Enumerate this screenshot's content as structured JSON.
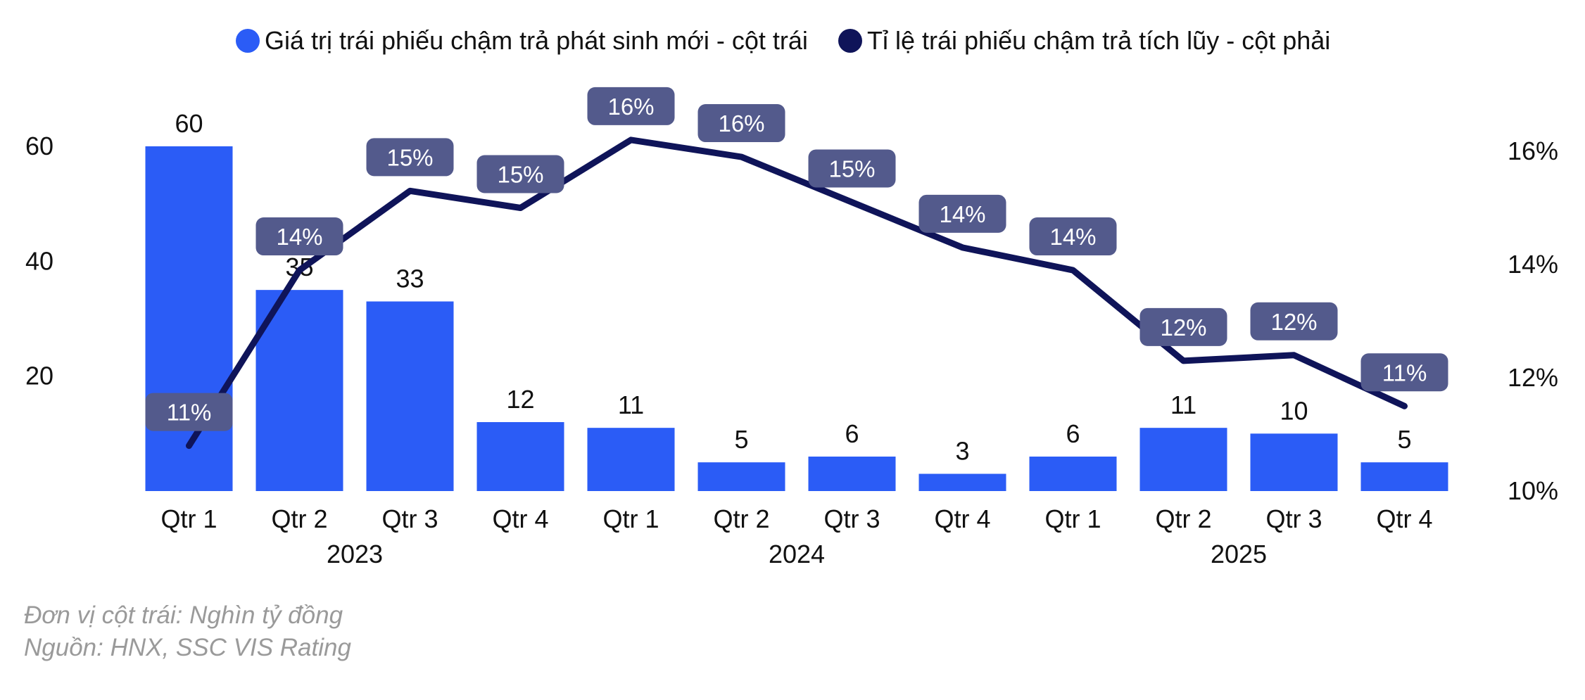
{
  "chart_data": {
    "type": "bar",
    "categories": [
      "Qtr 1",
      "Qtr 2",
      "Qtr 3",
      "Qtr 4",
      "Qtr 1",
      "Qtr 2",
      "Qtr 3",
      "Qtr 4",
      "Qtr 1",
      "Qtr 2",
      "Qtr 3",
      "Qtr 4"
    ],
    "groups": [
      {
        "label": "2023",
        "start": 0,
        "end": 3
      },
      {
        "label": "2024",
        "start": 4,
        "end": 7
      },
      {
        "label": "2025",
        "start": 8,
        "end": 11
      }
    ],
    "series": [
      {
        "name": "Giá trị trái phiếu chậm trả phát sinh mới - cột trái",
        "type": "bar",
        "axis": "left",
        "color": "#2b5cf6",
        "values": [
          60,
          35,
          33,
          12,
          11,
          5,
          6,
          3,
          6,
          11,
          10,
          5
        ],
        "labels": [
          "60",
          "35",
          "33",
          "12",
          "11",
          "5",
          "6",
          "3",
          "6",
          "11",
          "10",
          "5"
        ]
      },
      {
        "name": "Tỉ lệ trái phiếu chậm trả tích lũy - cột phải",
        "type": "line",
        "axis": "right",
        "color": "#0f1459",
        "values": [
          10.8,
          13.9,
          15.3,
          15.0,
          16.2,
          15.9,
          15.1,
          14.3,
          13.9,
          12.3,
          12.4,
          11.5
        ],
        "labels": [
          "11%",
          "14%",
          "15%",
          "15%",
          "16%",
          "16%",
          "15%",
          "14%",
          "14%",
          "12%",
          "12%",
          "11%"
        ]
      }
    ],
    "y_left": {
      "ticks": [
        20,
        40,
        60
      ],
      "tick_labels": [
        "20",
        "40",
        "60"
      ],
      "ylim": [
        0,
        60
      ]
    },
    "y_right": {
      "ticks": [
        10,
        12,
        14,
        16
      ],
      "tick_labels": [
        "10%",
        "12%",
        "14%",
        "16%"
      ],
      "ylim": [
        10,
        16
      ]
    },
    "label_box_color": "#535a8c",
    "grid": false,
    "legend_position": "top-center",
    "title": "",
    "xlabel": "",
    "ylabel": ""
  },
  "footnotes": {
    "unit": "Đơn vị cột trái: Nghìn tỷ đồng",
    "source": "Nguồn: HNX, SSC VIS Rating"
  }
}
